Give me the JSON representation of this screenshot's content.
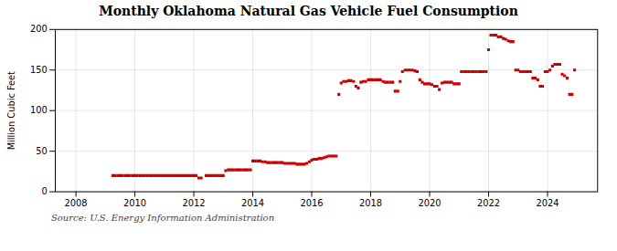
{
  "chart_data": {
    "type": "scatter",
    "title": "Monthly Oklahoma Natural Gas Vehicle Fuel Consumption",
    "ylabel": "Million Cubic Feet",
    "caption": "Source: U.S. Energy Information Administration",
    "color": "#cc0000",
    "marker": "square",
    "grid": true,
    "xlim": [
      2007.3,
      2025.7
    ],
    "xticks": [
      2008,
      2010,
      2012,
      2014,
      2016,
      2018,
      2020,
      2022,
      2024
    ],
    "ylim": [
      0,
      200
    ],
    "yticks": [
      0,
      50,
      100,
      150,
      200
    ],
    "x": [
      2009.25,
      2009.33,
      2009.42,
      2009.5,
      2009.58,
      2009.67,
      2009.75,
      2009.83,
      2009.92,
      2010,
      2010.08,
      2010.17,
      2010.25,
      2010.33,
      2010.42,
      2010.5,
      2010.58,
      2010.67,
      2010.75,
      2010.83,
      2010.92,
      2011,
      2011.08,
      2011.17,
      2011.25,
      2011.33,
      2011.42,
      2011.5,
      2011.58,
      2011.67,
      2011.75,
      2011.83,
      2011.92,
      2012,
      2012.08,
      2012.17,
      2012.25,
      2012.42,
      2012.5,
      2012.58,
      2012.67,
      2012.75,
      2012.83,
      2012.92,
      2013,
      2013.08,
      2013.17,
      2013.25,
      2013.33,
      2013.42,
      2013.5,
      2013.58,
      2013.67,
      2013.75,
      2013.83,
      2013.92,
      2014,
      2014.08,
      2014.17,
      2014.25,
      2014.33,
      2014.42,
      2014.5,
      2014.58,
      2014.67,
      2014.75,
      2014.83,
      2014.92,
      2015,
      2015.08,
      2015.17,
      2015.25,
      2015.33,
      2015.42,
      2015.5,
      2015.58,
      2015.67,
      2015.75,
      2015.83,
      2015.92,
      2016,
      2016.08,
      2016.17,
      2016.25,
      2016.33,
      2016.42,
      2016.5,
      2016.58,
      2016.67,
      2016.75,
      2016.83,
      2016.92,
      2017,
      2017.08,
      2017.17,
      2017.25,
      2017.33,
      2017.42,
      2017.5,
      2017.58,
      2017.67,
      2017.75,
      2017.83,
      2017.92,
      2018,
      2018.08,
      2018.17,
      2018.25,
      2018.33,
      2018.42,
      2018.5,
      2018.58,
      2018.67,
      2018.75,
      2018.83,
      2018.92,
      2019,
      2019.08,
      2019.17,
      2019.25,
      2019.33,
      2019.42,
      2019.5,
      2019.58,
      2019.67,
      2019.75,
      2019.83,
      2019.92,
      2020,
      2020.08,
      2020.17,
      2020.25,
      2020.33,
      2020.42,
      2020.5,
      2020.58,
      2020.67,
      2020.75,
      2020.83,
      2020.92,
      2021,
      2021.08,
      2021.17,
      2021.25,
      2021.33,
      2021.42,
      2021.5,
      2021.58,
      2021.67,
      2021.75,
      2021.83,
      2021.92,
      2022,
      2022.08,
      2022.17,
      2022.25,
      2022.33,
      2022.42,
      2022.5,
      2022.58,
      2022.67,
      2022.75,
      2022.83,
      2022.92,
      2023,
      2023.08,
      2023.17,
      2023.25,
      2023.33,
      2023.42,
      2023.5,
      2023.58,
      2023.67,
      2023.75,
      2023.83,
      2023.92,
      2024,
      2024.08,
      2024.17,
      2024.25,
      2024.33,
      2024.42,
      2024.5,
      2024.58,
      2024.67,
      2024.75,
      2024.83,
      2024.92
    ],
    "values": [
      20,
      20,
      20,
      20,
      20,
      20,
      20,
      20,
      20,
      20,
      20,
      20,
      20,
      20,
      20,
      20,
      20,
      20,
      20,
      20,
      20,
      20,
      20,
      20,
      20,
      20,
      20,
      20,
      20,
      20,
      20,
      20,
      20,
      20,
      20,
      17,
      17,
      20,
      20,
      20,
      20,
      20,
      20,
      20,
      20,
      26,
      27,
      27,
      27,
      27,
      27,
      27,
      27,
      27,
      27,
      27,
      38,
      38,
      38,
      38,
      37,
      37,
      36,
      36,
      36,
      36,
      36,
      36,
      36,
      35,
      35,
      35,
      35,
      35,
      34,
      34,
      34,
      34,
      35,
      37,
      39,
      40,
      40,
      41,
      41,
      42,
      43,
      44,
      44,
      44,
      44,
      120,
      134,
      136,
      136,
      137,
      137,
      136,
      130,
      128,
      135,
      136,
      136,
      138,
      138,
      138,
      138,
      138,
      138,
      136,
      135,
      135,
      135,
      135,
      124,
      124,
      136,
      148,
      150,
      150,
      150,
      150,
      149,
      148,
      138,
      135,
      133,
      133,
      133,
      132,
      130,
      130,
      126,
      134,
      135,
      135,
      135,
      135,
      133,
      133,
      133,
      148,
      148,
      148,
      148,
      148,
      148,
      148,
      148,
      148,
      148,
      148,
      175,
      193,
      193,
      193,
      191,
      191,
      189,
      188,
      186,
      185,
      185,
      150,
      150,
      148,
      148,
      148,
      148,
      148,
      140,
      140,
      138,
      130,
      130,
      148,
      148,
      150,
      155,
      157,
      157,
      157,
      145,
      143,
      140,
      120,
      120,
      150
    ]
  }
}
